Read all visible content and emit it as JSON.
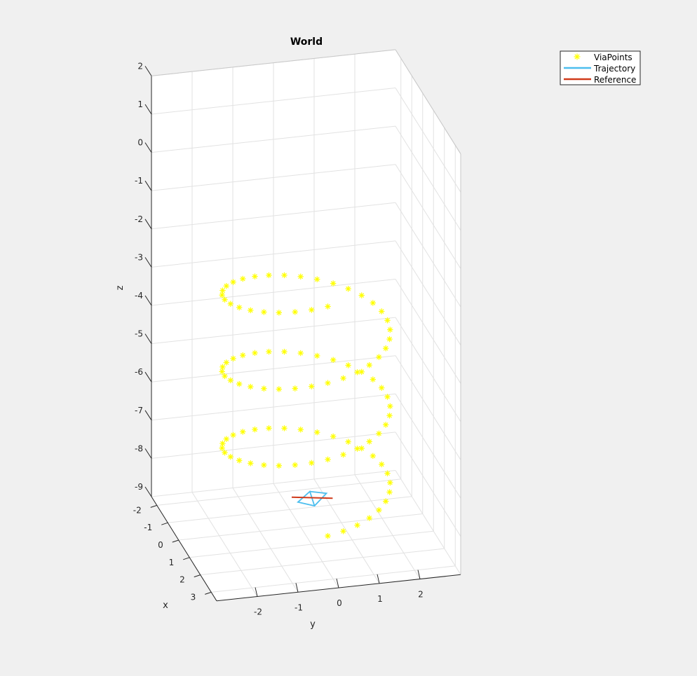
{
  "chart_data": {
    "type": "scatter",
    "title": "World",
    "xlabel": "x",
    "ylabel": "y",
    "zlabel": "z",
    "xlim": [
      -2.5,
      3.5
    ],
    "ylim": [
      -3,
      3
    ],
    "zlim": [
      -9,
      2
    ],
    "x_ticks": [
      "-2",
      "-1",
      "0",
      "1",
      "2",
      "3"
    ],
    "y_ticks": [
      "-2",
      "-1",
      "0",
      "1",
      "2"
    ],
    "z_ticks": [
      "-9",
      "-8",
      "-7",
      "-6",
      "-5",
      "-4",
      "-3",
      "-2",
      "-1",
      "0",
      "1",
      "2"
    ],
    "grid": true,
    "legend_position": "top-right",
    "legend": [
      "ViaPoints",
      "Trajectory",
      "Reference"
    ],
    "colors": {
      "viapoints": "#ffff00",
      "trajectory": "#4dbeee",
      "reference": "#d03a1a"
    },
    "series": [
      {
        "name": "ViaPoints",
        "type": "scatter3",
        "marker": "asterisk",
        "description_shape": "helix around z axis, 3 turns, radius ~2, z from -8 to -2",
        "helix": {
          "center_x": 0.5,
          "center_y": 0,
          "radius": 2,
          "z_start": -8.1,
          "z_end": -2.1,
          "turns": 3,
          "points_per_turn": 32
        }
      },
      {
        "name": "Trajectory",
        "type": "line3",
        "values": [
          [
            0.1,
            0.2,
            -8.05
          ],
          [
            0.5,
            0.5,
            -7.95
          ],
          [
            0.9,
            0.1,
            -8.05
          ],
          [
            0.5,
            -0.2,
            -8.1
          ],
          [
            0.1,
            0.2,
            -8.05
          ],
          [
            0.9,
            0.1,
            -8.05
          ]
        ]
      },
      {
        "name": "Reference",
        "type": "line3",
        "values": [
          [
            0.3,
            -0.3,
            -8.05
          ],
          [
            0.7,
            0.6,
            -8.0
          ]
        ]
      }
    ]
  }
}
